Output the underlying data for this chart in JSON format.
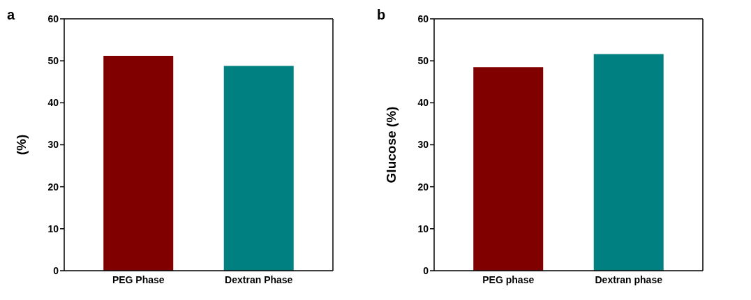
{
  "chart_data": [
    {
      "type": "bar",
      "title": "a",
      "ylabel": "(%)",
      "categories": [
        "PEG Phase",
        "Dextran Phase"
      ],
      "values": [
        51.2,
        48.8
      ],
      "colors": [
        "#800000",
        "#008080"
      ],
      "ylim": [
        0,
        60
      ],
      "yticks": [
        0,
        10,
        20,
        30,
        40,
        50,
        60
      ],
      "grid": false,
      "legend": false
    },
    {
      "type": "bar",
      "title": "b",
      "ylabel": "Glucose (%)",
      "categories": [
        "PEG phase",
        "Dextran phase"
      ],
      "values": [
        48.5,
        51.6
      ],
      "colors": [
        "#800000",
        "#008080"
      ],
      "ylim": [
        0,
        60
      ],
      "yticks": [
        0,
        10,
        20,
        30,
        40,
        50,
        60
      ],
      "grid": false,
      "legend": false
    }
  ]
}
